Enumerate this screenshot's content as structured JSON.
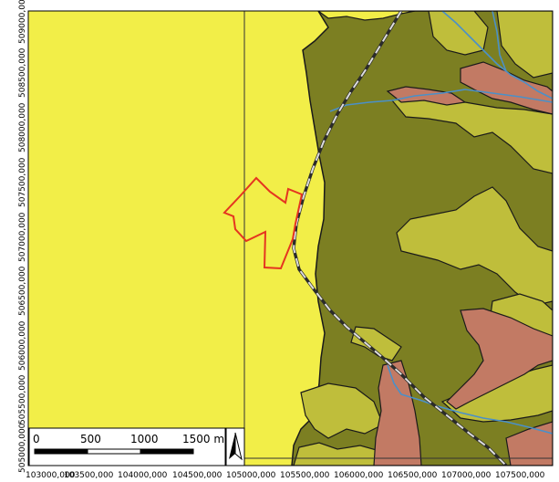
{
  "map": {
    "colors": {
      "background_unit": "#f2ee48",
      "dark_olive_unit": "#7c7f22",
      "light_olive_unit": "#bfbe3b",
      "red_brown_unit": "#c27a64",
      "river": "#4a90c8",
      "parcel_outline": "#e53520",
      "frame": "#000000"
    },
    "x_ticks": [
      "103000,000",
      "103500,000",
      "104000,000",
      "104500,000",
      "105000,000",
      "105500,000",
      "106000,000",
      "106500,000",
      "107000,000",
      "107500,000"
    ],
    "y_ticks": [
      "509000,000",
      "508500,000",
      "508000,000",
      "507500,000",
      "507000,000",
      "506500,000",
      "506000,000",
      "505500,000",
      "505000,000"
    ],
    "scale_bar": {
      "labels": [
        "0",
        "500",
        "1000",
        "1500 m"
      ]
    },
    "north_arrow": "north-arrow-icon"
  }
}
